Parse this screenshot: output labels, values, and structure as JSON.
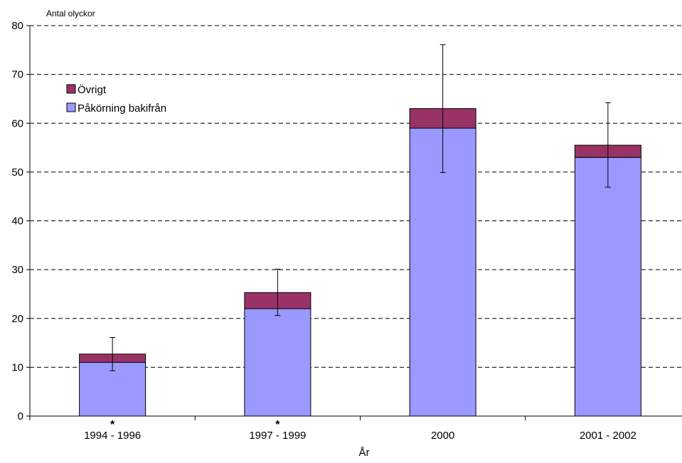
{
  "chart_data": {
    "type": "bar",
    "stacked": true,
    "ylabel": "Antal olyckor",
    "xlabel": "År",
    "ylim": [
      0,
      80
    ],
    "yticks": [
      0,
      10,
      20,
      30,
      40,
      50,
      60,
      70,
      80
    ],
    "grid": "horizontal-dashed",
    "categories": [
      "1994 - 1996",
      "1997 - 1999",
      "2000",
      "2001 - 2002"
    ],
    "annotations": [
      "*",
      "*",
      "",
      ""
    ],
    "series": [
      {
        "name": "Påkörning bakifrån",
        "color": "#9999ff",
        "values": [
          11,
          22,
          59,
          53
        ]
      },
      {
        "name": "Övrigt",
        "color": "#993366",
        "values": [
          1.7,
          3.3,
          4,
          2.5
        ]
      }
    ],
    "error_bars": [
      {
        "low": 9.3,
        "high": 16.1
      },
      {
        "low": 20.6,
        "high": 30.1
      },
      {
        "low": 49.9,
        "high": 76.1
      },
      {
        "low": 46.9,
        "high": 64.2
      }
    ],
    "legend": {
      "placement": "top-left",
      "order": [
        "Övrigt",
        "Påkörning bakifrån"
      ]
    }
  }
}
